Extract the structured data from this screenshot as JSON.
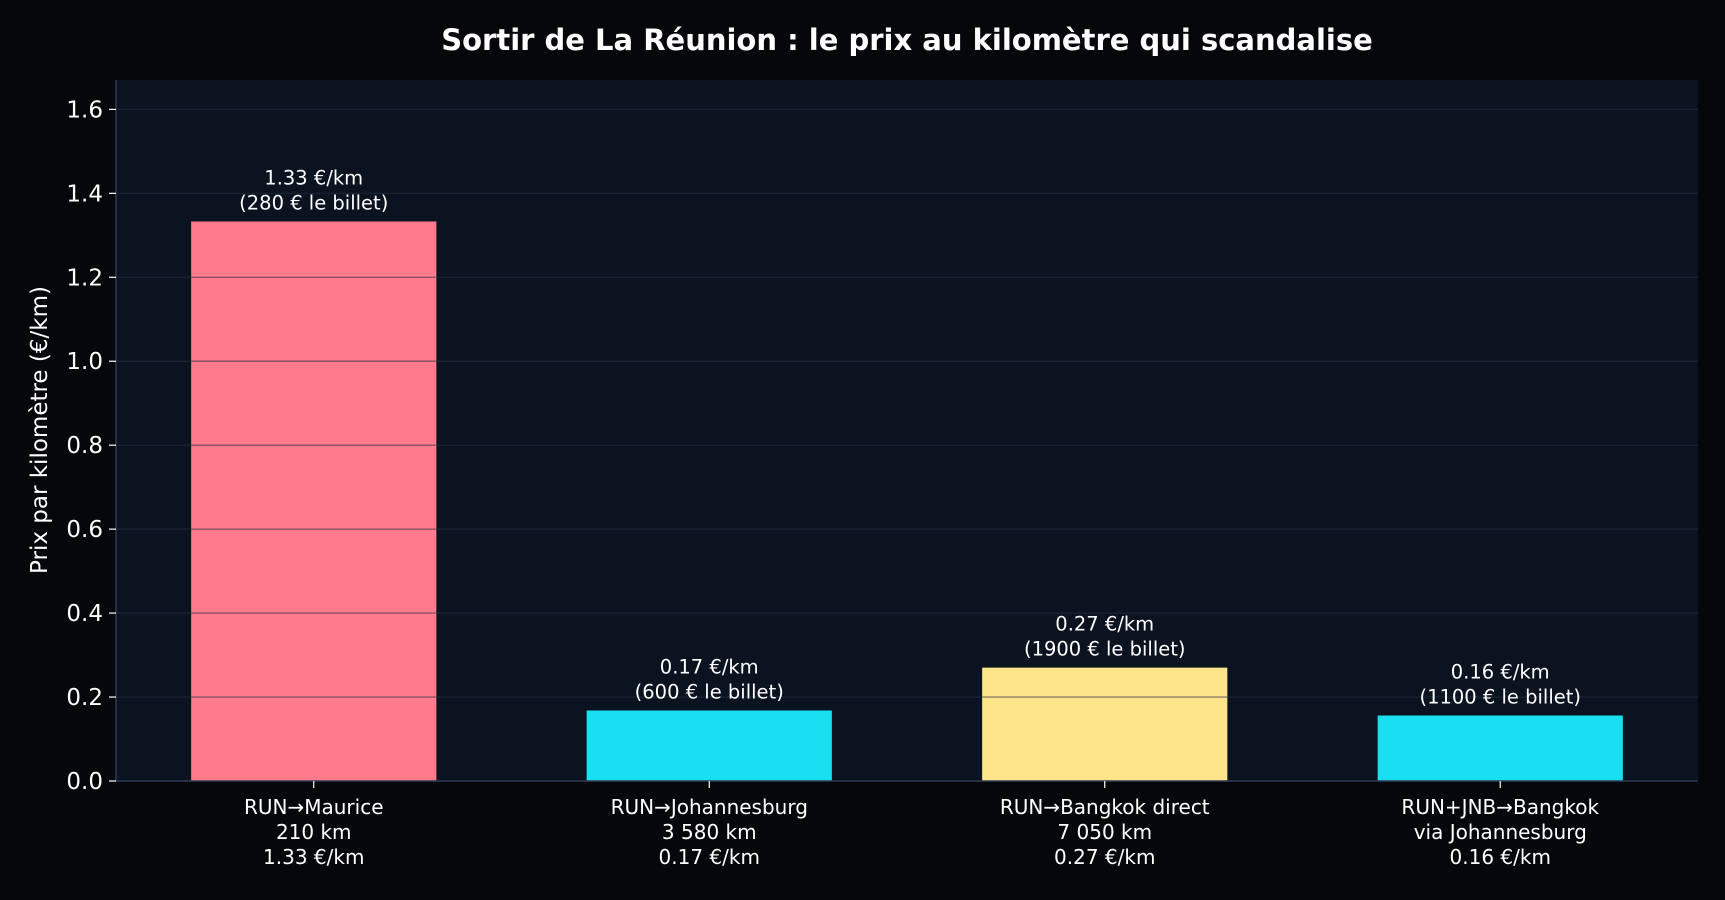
{
  "chart_data": {
    "type": "bar",
    "title": "Sortir de La Réunion : le prix au kilomètre qui scandalise",
    "ylabel": "Prix par kilomètre (€/km)",
    "xlabel": "",
    "ylim": [
      0,
      1.67
    ],
    "yticks": [
      "0.0",
      "0.2",
      "0.4",
      "0.6",
      "0.8",
      "1.0",
      "1.2",
      "1.4",
      "1.6"
    ],
    "ytick_values": [
      0,
      0.2,
      0.4,
      0.6,
      0.8,
      1.0,
      1.2,
      1.4,
      1.6
    ],
    "grid": true,
    "categories": [
      [
        "RUN→Maurice",
        "210 km",
        "1.33 €/km"
      ],
      [
        "RUN→Johannesburg",
        "3 580 km",
        "0.17 €/km"
      ],
      [
        "RUN→Bangkok direct",
        "7 050 km",
        "0.27 €/km"
      ],
      [
        "RUN+JNB→Bangkok",
        "via Johannesburg",
        "0.16 €/km"
      ]
    ],
    "values": [
      1.333,
      0.168,
      0.27,
      0.156
    ],
    "data_labels": [
      [
        "1.33 €/km",
        "(280 € le billet)"
      ],
      [
        "0.17 €/km",
        "(600 € le billet)"
      ],
      [
        "0.27 €/km",
        "(1900 € le billet)"
      ],
      [
        "0.16 €/km",
        "(1100 € le billet)"
      ]
    ],
    "bar_colors": [
      "#ff7a8a",
      "#18e0f0",
      "#ffe58a",
      "#18e0f0"
    ],
    "colors": {
      "page_background": "#05070b",
      "plot_background": "#0c1320",
      "grid": "#1a2433",
      "axis": "#2c3a55",
      "text": "#ffffff"
    }
  }
}
